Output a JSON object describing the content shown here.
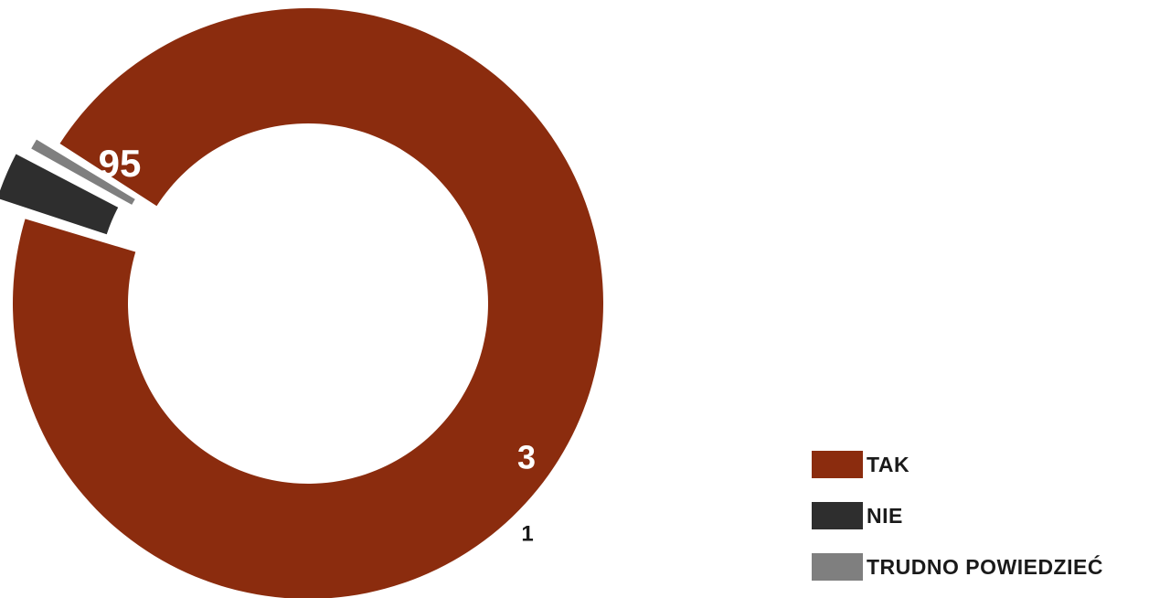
{
  "chart_data": {
    "type": "pie",
    "variant": "donut",
    "series": [
      {
        "name": "TAK",
        "value": 95,
        "label": "95",
        "color": "#8B2C0E",
        "label_color": "#ffffff"
      },
      {
        "name": "NIE",
        "value": 3,
        "label": "3",
        "color": "#2E2E2E",
        "label_color": "#ffffff"
      },
      {
        "name": "TRUDNO POWIEDZIEĆ",
        "value": 1,
        "label": "1",
        "color": "#7F7F7F",
        "label_color": "#1a1a1a"
      }
    ],
    "legend_placement": "bottom-right",
    "exploded_slices": [
      "NIE",
      "TRUDNO POWIEDZIEĆ"
    ]
  },
  "legend": {
    "items": [
      {
        "label": "TAK",
        "color": "#8B2C0E"
      },
      {
        "label": "NIE",
        "color": "#2E2E2E"
      },
      {
        "label": "TRUDNO POWIEDZIEĆ",
        "color": "#7F7F7F"
      }
    ]
  }
}
